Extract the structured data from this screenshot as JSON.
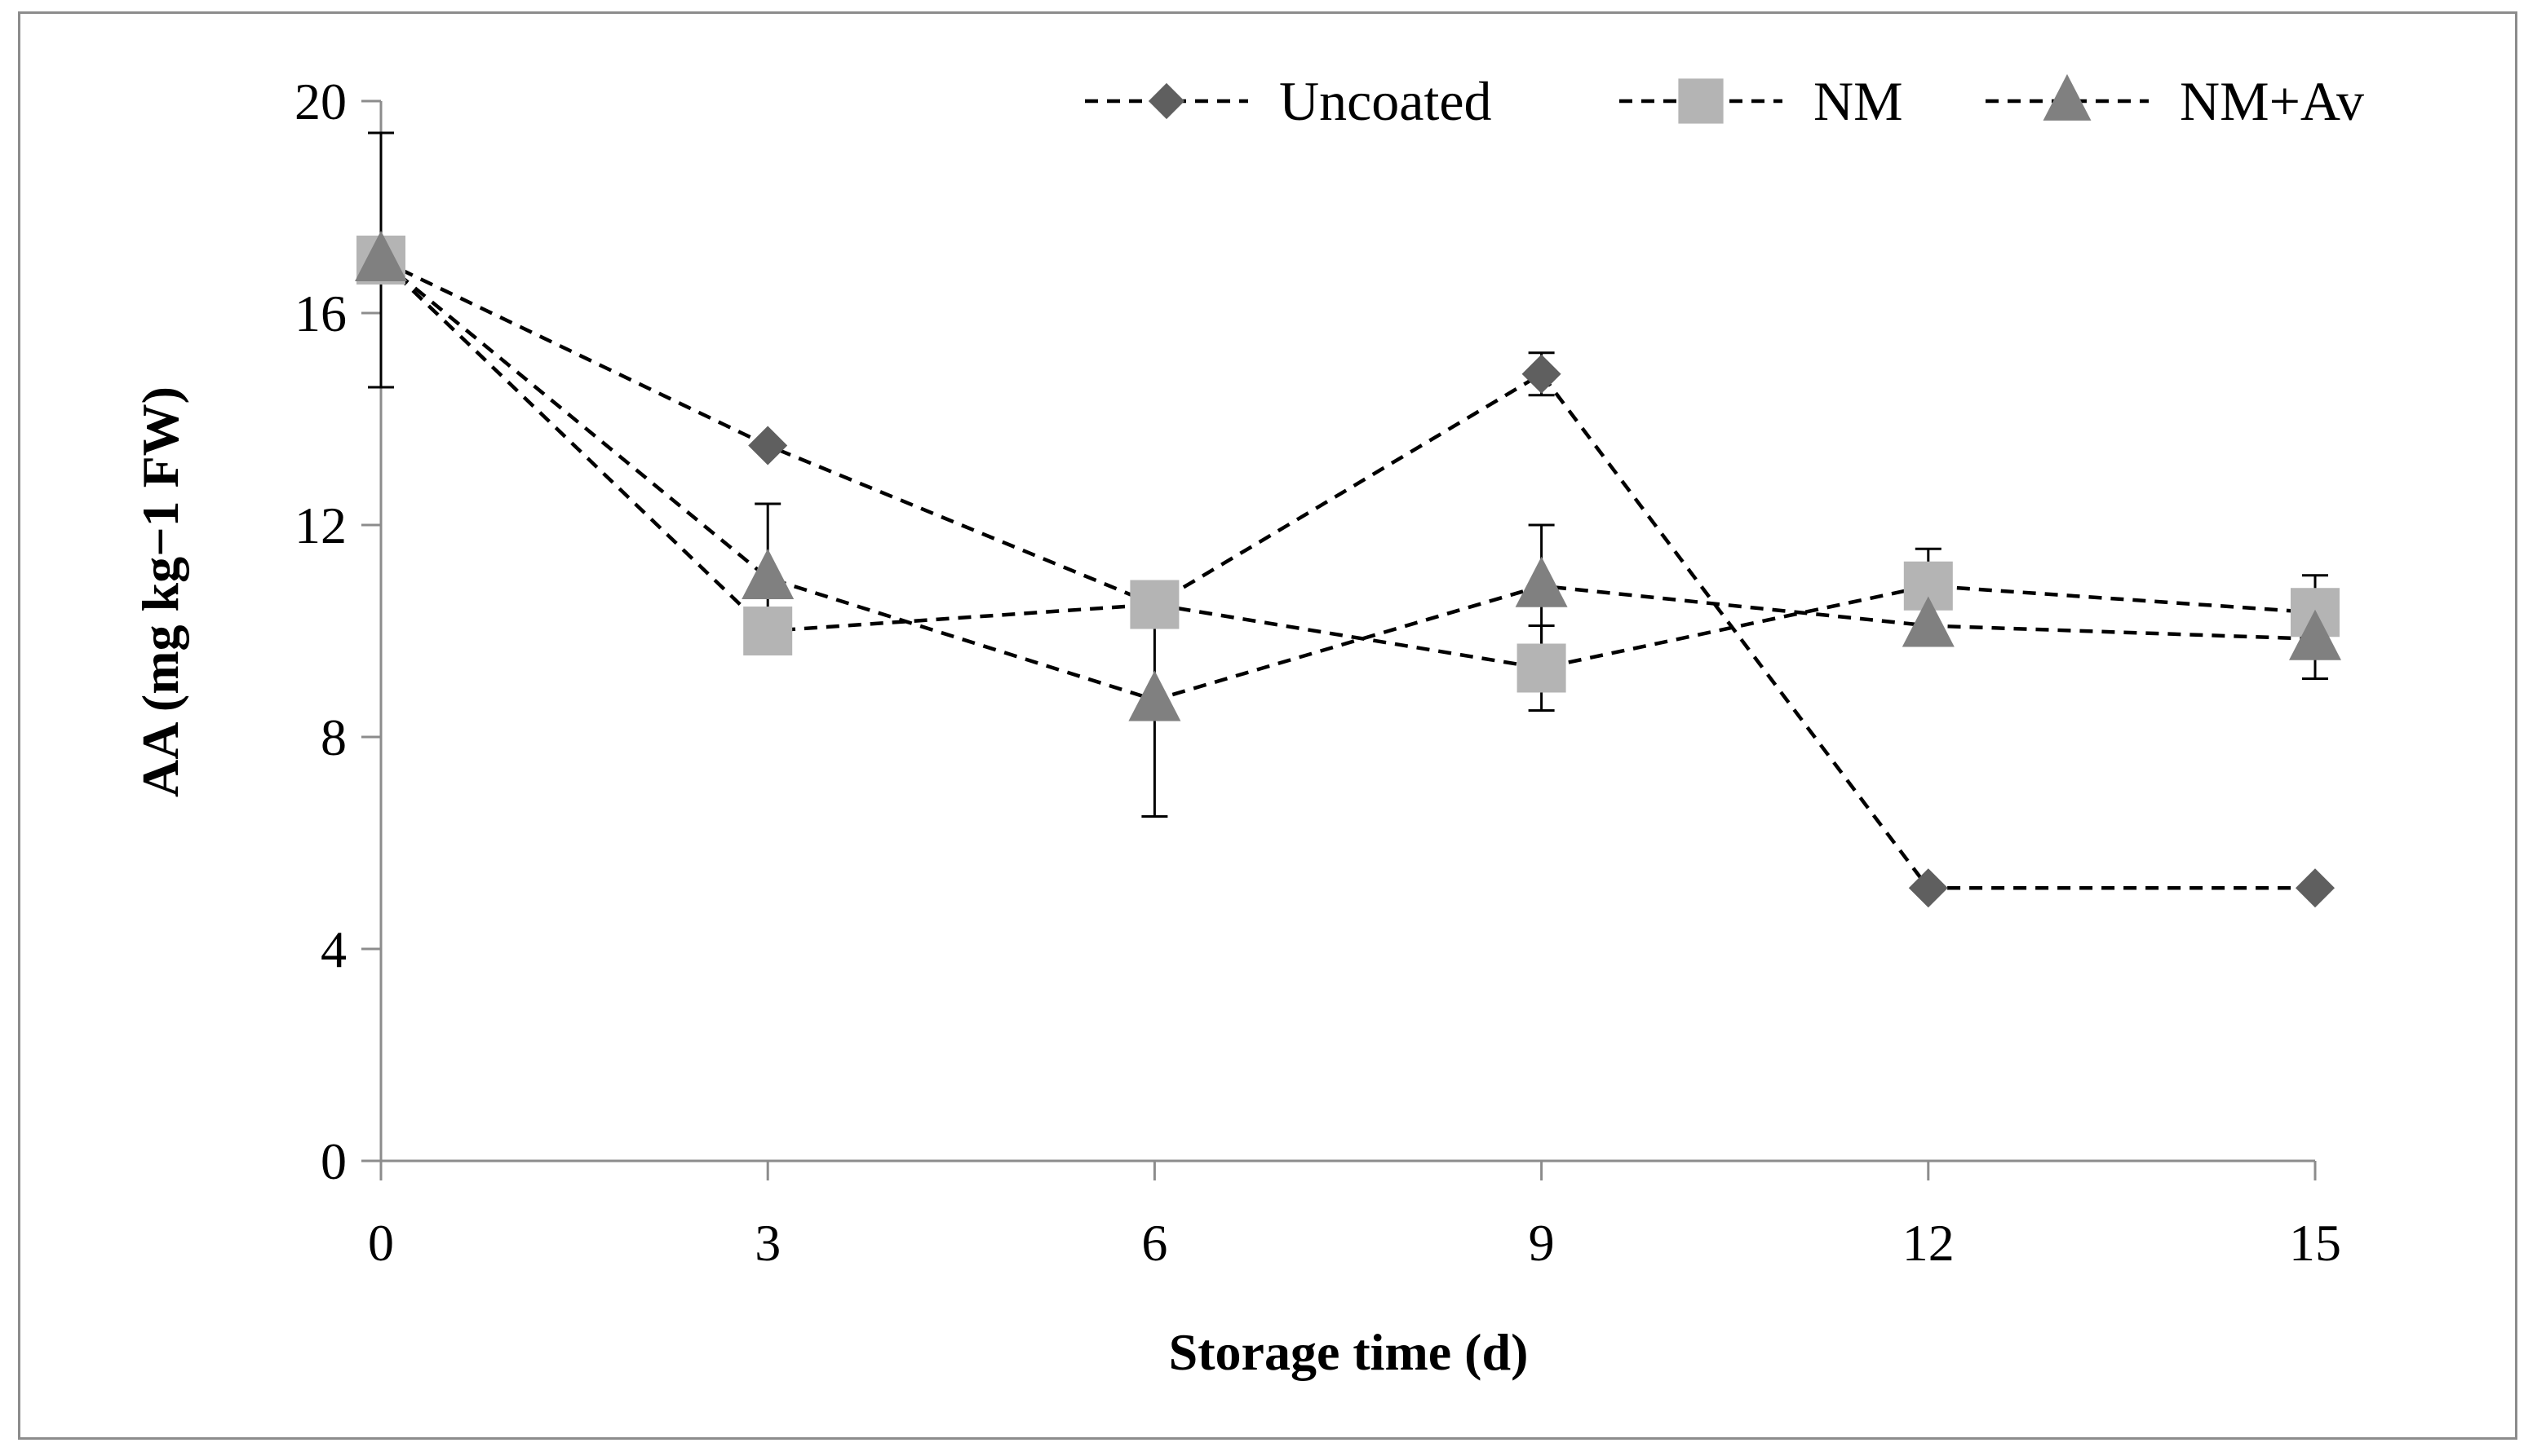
{
  "chart_data": {
    "type": "line",
    "title": "",
    "xlabel": "Storage time (d)",
    "ylabel": "AA (mg kg−1 FW)",
    "x": [
      0,
      3,
      6,
      9,
      12,
      15
    ],
    "xlim": [
      0,
      15
    ],
    "ylim": [
      0,
      20
    ],
    "yticks": [
      0,
      4,
      8,
      12,
      16,
      20
    ],
    "grid": false,
    "legend_position": "top-right",
    "series": [
      {
        "name": "Uncoated",
        "marker": "diamond",
        "color": "#5f5f5f",
        "line_style": "dashed",
        "values": [
          17.0,
          13.5,
          10.5,
          14.85,
          5.15,
          5.15
        ],
        "errors": [
          2.4,
          0.0,
          0.0,
          0.4,
          0.0,
          0.0
        ]
      },
      {
        "name": "NM",
        "marker": "square",
        "color": "#b4b4b4",
        "line_style": "dashed",
        "values": [
          17.0,
          10.0,
          10.5,
          9.3,
          10.85,
          10.35
        ],
        "errors": [
          0.0,
          0.0,
          0.0,
          0.8,
          0.7,
          0.7
        ]
      },
      {
        "name": "NM+Av",
        "marker": "triangle",
        "color": "#808080",
        "line_style": "dashed",
        "values": [
          17.0,
          11.0,
          8.7,
          10.85,
          10.1,
          9.85
        ],
        "errors": [
          0.0,
          1.4,
          2.2,
          1.15,
          0.0,
          0.75
        ]
      }
    ]
  }
}
